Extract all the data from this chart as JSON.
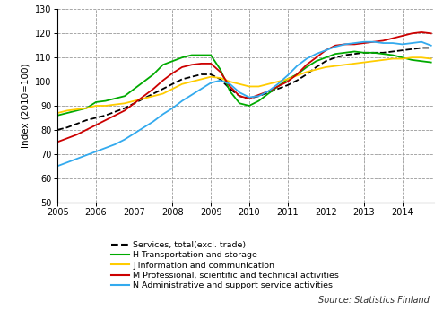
{
  "ylabel": "Index (2010=100)",
  "source": "Source: Statistics Finland",
  "xlim": [
    2005.0,
    2014.83
  ],
  "ylim": [
    50,
    130
  ],
  "yticks": [
    50,
    60,
    70,
    80,
    90,
    100,
    110,
    120,
    130
  ],
  "xticks": [
    2005,
    2006,
    2007,
    2008,
    2009,
    2010,
    2011,
    2012,
    2013,
    2014
  ],
  "series": {
    "services_total": {
      "label": "Services, total(excl. trade)",
      "color": "#000000",
      "linestyle": "--",
      "linewidth": 1.3,
      "values_x": [
        2005.0,
        2005.25,
        2005.5,
        2005.75,
        2006.0,
        2006.25,
        2006.5,
        2006.75,
        2007.0,
        2007.25,
        2007.5,
        2007.75,
        2008.0,
        2008.25,
        2008.5,
        2008.75,
        2009.0,
        2009.25,
        2009.5,
        2009.75,
        2010.0,
        2010.25,
        2010.5,
        2010.75,
        2011.0,
        2011.25,
        2011.5,
        2011.75,
        2012.0,
        2012.25,
        2012.5,
        2012.75,
        2013.0,
        2013.25,
        2013.5,
        2013.75,
        2014.0,
        2014.25,
        2014.5,
        2014.75
      ],
      "values_y": [
        80,
        81,
        82.5,
        84,
        85,
        86,
        87.5,
        89,
        91,
        93,
        95,
        97,
        99,
        101,
        102,
        103,
        103,
        101,
        97,
        94,
        93,
        94,
        95.5,
        97,
        98.5,
        100.5,
        103,
        106,
        108.5,
        110,
        111,
        111.5,
        112,
        112,
        112,
        112.5,
        113,
        113.5,
        114,
        114
      ]
    },
    "H_transport": {
      "label": "H Transportation and storage",
      "color": "#00aa00",
      "linestyle": "-",
      "linewidth": 1.3,
      "values_x": [
        2005.0,
        2005.25,
        2005.5,
        2005.75,
        2006.0,
        2006.25,
        2006.5,
        2006.75,
        2007.0,
        2007.25,
        2007.5,
        2007.75,
        2008.0,
        2008.25,
        2008.5,
        2008.75,
        2009.0,
        2009.25,
        2009.5,
        2009.75,
        2010.0,
        2010.25,
        2010.5,
        2010.75,
        2011.0,
        2011.25,
        2011.5,
        2011.75,
        2012.0,
        2012.25,
        2012.5,
        2012.75,
        2013.0,
        2013.25,
        2013.5,
        2013.75,
        2014.0,
        2014.25,
        2014.5,
        2014.75
      ],
      "values_y": [
        86,
        87,
        88,
        89,
        91.5,
        92,
        93,
        94,
        97,
        100,
        103,
        107,
        108.5,
        110,
        111,
        111,
        111,
        105,
        96,
        91,
        90,
        92,
        95,
        98,
        101,
        103,
        106,
        108.5,
        110,
        111.5,
        112,
        112.5,
        112,
        112,
        111.5,
        111,
        110,
        109,
        108.5,
        108
      ]
    },
    "J_info": {
      "label": "J Information and communication",
      "color": "#ffcc00",
      "linestyle": "-",
      "linewidth": 1.3,
      "values_x": [
        2005.0,
        2005.25,
        2005.5,
        2005.75,
        2006.0,
        2006.25,
        2006.5,
        2006.75,
        2007.0,
        2007.25,
        2007.5,
        2007.75,
        2008.0,
        2008.25,
        2008.5,
        2008.75,
        2009.0,
        2009.25,
        2009.5,
        2009.75,
        2010.0,
        2010.25,
        2010.5,
        2010.75,
        2011.0,
        2011.25,
        2011.5,
        2011.75,
        2012.0,
        2012.25,
        2012.5,
        2012.75,
        2013.0,
        2013.25,
        2013.5,
        2013.75,
        2014.0,
        2014.25,
        2014.5,
        2014.75
      ],
      "values_y": [
        87,
        88,
        88.5,
        89,
        90,
        90,
        90.5,
        91,
        92,
        93,
        94,
        95,
        97,
        99,
        100,
        101,
        102,
        101.5,
        100,
        99,
        98,
        98,
        99,
        100,
        101,
        102.5,
        104,
        105,
        106,
        106.5,
        107,
        107.5,
        108,
        108.5,
        109,
        109.5,
        109.5,
        110,
        110,
        109.5
      ]
    },
    "M_professional": {
      "label": "M Professional, scientific and technical activities",
      "color": "#cc0000",
      "linestyle": "-",
      "linewidth": 1.3,
      "values_x": [
        2005.0,
        2005.25,
        2005.5,
        2005.75,
        2006.0,
        2006.25,
        2006.5,
        2006.75,
        2007.0,
        2007.25,
        2007.5,
        2007.75,
        2008.0,
        2008.25,
        2008.5,
        2008.75,
        2009.0,
        2009.25,
        2009.5,
        2009.75,
        2010.0,
        2010.25,
        2010.5,
        2010.75,
        2011.0,
        2011.25,
        2011.5,
        2011.75,
        2012.0,
        2012.25,
        2012.5,
        2012.75,
        2013.0,
        2013.25,
        2013.5,
        2013.75,
        2014.0,
        2014.25,
        2014.5,
        2014.75
      ],
      "values_y": [
        75,
        76.5,
        78,
        80,
        82,
        84,
        86,
        88,
        91,
        94,
        97,
        100.5,
        103.5,
        106,
        107,
        107.5,
        107.5,
        104,
        98,
        94,
        93,
        94.5,
        96,
        98,
        100,
        103,
        107,
        110,
        113,
        115,
        115.5,
        115.5,
        116,
        116.5,
        117,
        118,
        119,
        120,
        120.5,
        120
      ]
    },
    "N_admin": {
      "label": "N Administrative and support service activities",
      "color": "#33aaee",
      "linestyle": "-",
      "linewidth": 1.3,
      "values_x": [
        2005.0,
        2005.25,
        2005.5,
        2005.75,
        2006.0,
        2006.25,
        2006.5,
        2006.75,
        2007.0,
        2007.25,
        2007.5,
        2007.75,
        2008.0,
        2008.25,
        2008.5,
        2008.75,
        2009.0,
        2009.25,
        2009.5,
        2009.75,
        2010.0,
        2010.25,
        2010.5,
        2010.75,
        2011.0,
        2011.25,
        2011.5,
        2011.75,
        2012.0,
        2012.25,
        2012.5,
        2012.75,
        2013.0,
        2013.25,
        2013.5,
        2013.75,
        2014.0,
        2014.25,
        2014.5,
        2014.75
      ],
      "values_y": [
        65,
        66.5,
        68,
        69.5,
        71,
        72.5,
        74,
        76,
        78.5,
        81,
        83.5,
        86.5,
        89,
        92,
        94.5,
        97,
        99.5,
        100.5,
        99,
        95.5,
        93.5,
        94,
        96,
        99,
        102.5,
        106.5,
        109.5,
        111.5,
        113,
        114.5,
        115.5,
        116,
        116.5,
        116.5,
        116,
        116,
        115.5,
        116,
        116.5,
        115
      ]
    }
  },
  "legend_entries": [
    {
      "label": "Services, total(excl. trade)",
      "color": "#000000",
      "linestyle": "--"
    },
    {
      "label": "H Transportation and storage",
      "color": "#00aa00",
      "linestyle": "-"
    },
    {
      "label": "J Information and communication",
      "color": "#ffcc00",
      "linestyle": "-"
    },
    {
      "label": "M Professional, scientific and technical activities",
      "color": "#cc0000",
      "linestyle": "-"
    },
    {
      "label": "N Administrative and support service activities",
      "color": "#33aaee",
      "linestyle": "-"
    }
  ],
  "background_color": "#ffffff",
  "grid_color": "#999999",
  "grid_linestyle": "--",
  "grid_linewidth": 0.6
}
